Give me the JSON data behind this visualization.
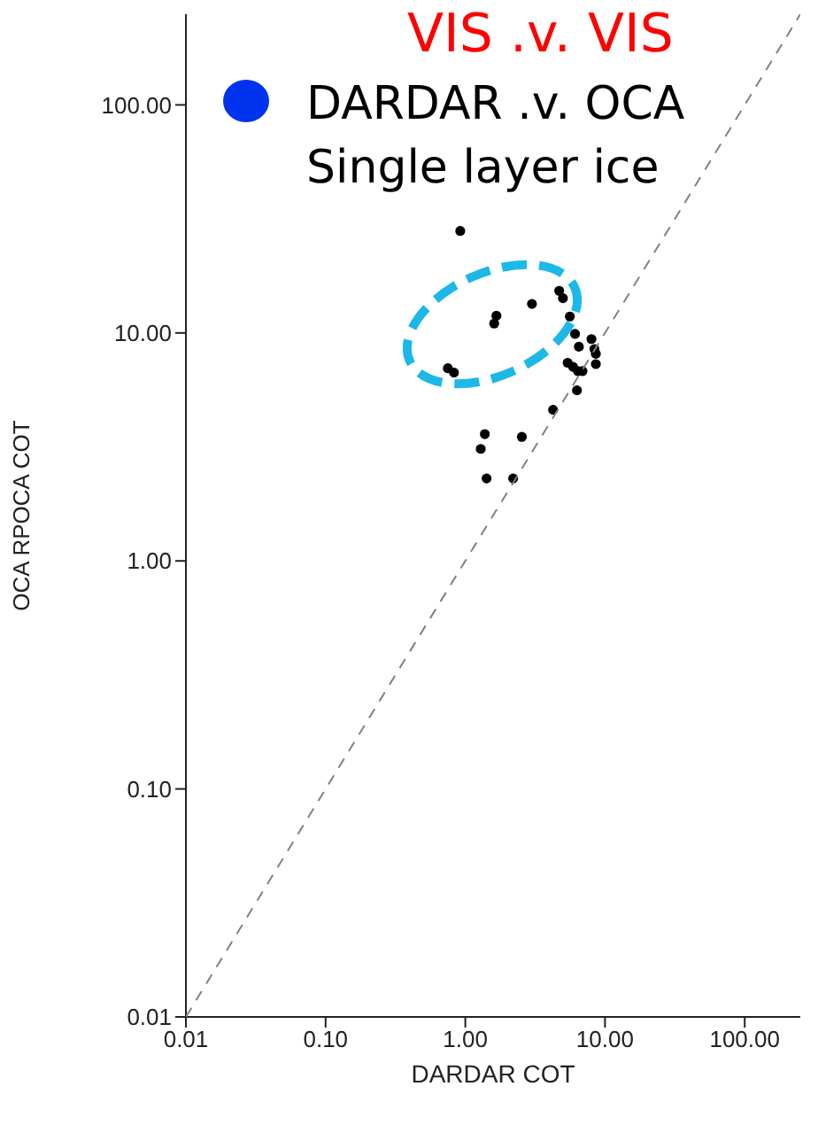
{
  "chart_data": {
    "type": "scatter",
    "xlabel": "DARDAR COT",
    "ylabel": "OCA RPOCA COT",
    "log": "xy",
    "marker": "circle",
    "xlim": [
      0.01,
      250
    ],
    "ylim": [
      0.01,
      250
    ],
    "xticks": [
      {
        "value": 0.01,
        "label": "0.01"
      },
      {
        "value": 0.1,
        "label": "0.10"
      },
      {
        "value": 1,
        "label": "1.00"
      },
      {
        "value": 10,
        "label": "10.00"
      },
      {
        "value": 100,
        "label": "100.00"
      }
    ],
    "yticks": [
      {
        "value": 0.01,
        "label": "0.01"
      },
      {
        "value": 0.1,
        "label": "0.10"
      },
      {
        "value": 1,
        "label": "1.00"
      },
      {
        "value": 10,
        "label": "10.00"
      },
      {
        "value": 100,
        "label": "100.00"
      }
    ],
    "annotations": [
      "VIS  .v.   VIS",
      "DARDAR .v. OCA",
      "Single layer ice"
    ],
    "series": [
      {
        "color": "#000000",
        "x": [
          0.92,
          1.67,
          1.61,
          3.0,
          0.75,
          0.83,
          4.7,
          5.0,
          5.6,
          6.1,
          6.5,
          8.0,
          8.4,
          8.6,
          8.6,
          5.4,
          5.9,
          6.4,
          6.9,
          6.3,
          4.25,
          1.38,
          1.29,
          2.54,
          1.42,
          2.2
        ],
        "values": [
          28,
          11.9,
          11.0,
          13.4,
          7.0,
          6.7,
          15.3,
          14.2,
          11.8,
          9.9,
          8.7,
          9.4,
          8.5,
          8.1,
          7.3,
          7.4,
          7.1,
          6.8,
          6.8,
          5.6,
          4.6,
          3.6,
          3.1,
          3.5,
          2.3,
          2.3
        ]
      },
      {
        "type": "line",
        "color": "#808080",
        "line_style": "dashed",
        "marker": "none",
        "x": [
          0.01,
          250
        ],
        "values": [
          0.01,
          250
        ]
      }
    ]
  }
}
